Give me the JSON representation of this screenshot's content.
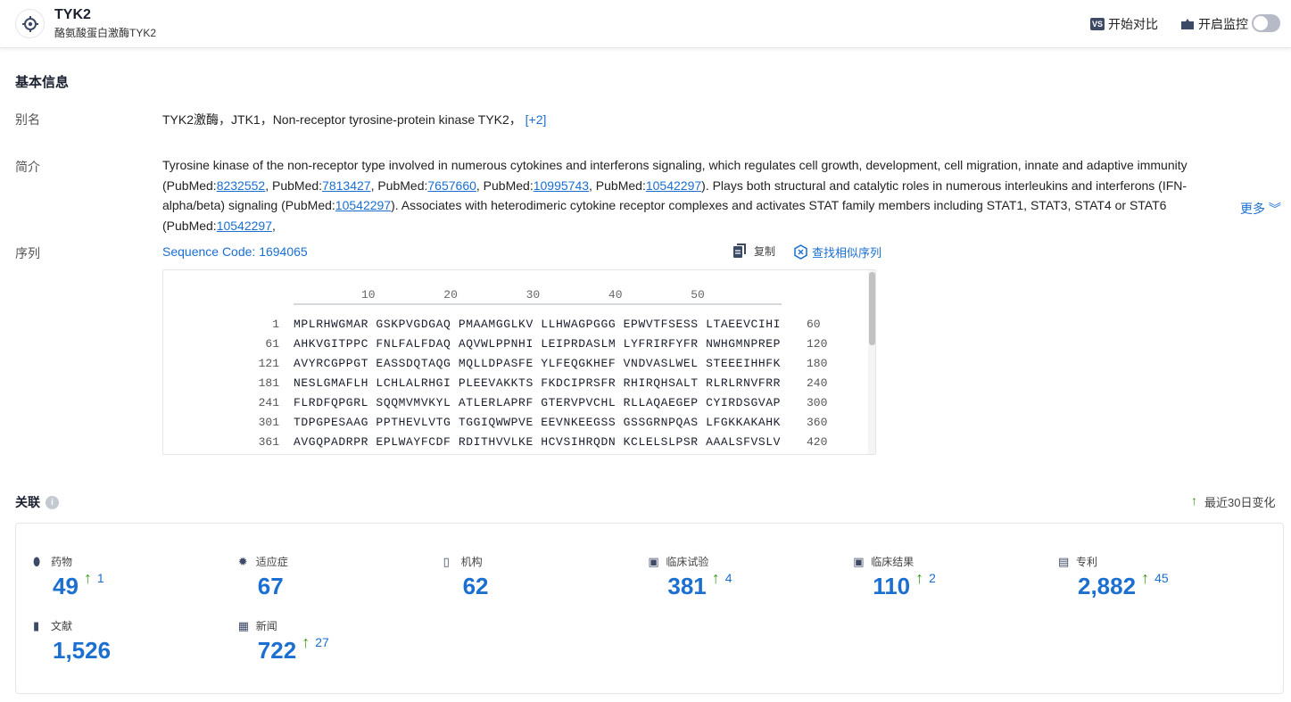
{
  "header": {
    "title": "TYK2",
    "subtitle": "酪氨酸蛋白激酶TYK2",
    "compare_label": "开始对比",
    "compare_icon": "VS",
    "monitor_label": "开启监控",
    "monitor_on": false
  },
  "basic": {
    "title": "基本信息",
    "alias_label": "别名",
    "alias_value": "TYK2激酶，JTK1，Non-receptor tyrosine-protein kinase TYK2，",
    "alias_more": "[+2]",
    "intro_label": "简介",
    "intro": [
      {
        "t": "Tyrosine kinase of the non-receptor type involved in numerous cytokines and interferons signaling, which regulates cell growth, development, cell migration, innate and adaptive immunity (PubMed:"
      },
      {
        "l": "8232552"
      },
      {
        "t": ", PubMed:"
      },
      {
        "l": "7813427"
      },
      {
        "t": ", PubMed:"
      },
      {
        "l": "7657660"
      },
      {
        "t": ", PubMed:"
      },
      {
        "l": "10995743"
      },
      {
        "t": ", PubMed:"
      },
      {
        "l": "10542297"
      },
      {
        "t": "). Plays both structural and catalytic roles in numerous interleukins and interferons (IFN-alpha/beta) signaling (PubMed:"
      },
      {
        "l": "10542297"
      },
      {
        "t": "). Associates with heterodimeric cytokine receptor complexes and activates STAT family members including STAT1, STAT3, STAT4 or STAT6 (PubMed:"
      },
      {
        "l": "10542297"
      },
      {
        "t": ","
      }
    ],
    "more_label": "更多",
    "seq_label": "序列",
    "seq_code": "Sequence Code: 1694065",
    "copy_label": "复制",
    "similar_label": "查找相似序列",
    "ruler": [
      "10",
      "20",
      "30",
      "40",
      "50"
    ],
    "rows": [
      {
        "start": "1",
        "seq": "MPLRHWGMAR GSKPVGDGAQ PMAAMGGLKV LLHWAGPGGG EPWVTFSESS LTAEEVCIHI",
        "end": "60"
      },
      {
        "start": "61",
        "seq": "AHKVGITPPC FNLFALFDAQ AQVWLPPNHI LEIPRDASLM LYFRIRFYFR NWHGMNPREP",
        "end": "120"
      },
      {
        "start": "121",
        "seq": "AVYRCGPPGT EASSDQTAQG MQLLDPASFE YLFEQGKHEF VNDVASLWEL STEEEIHHFK",
        "end": "180"
      },
      {
        "start": "181",
        "seq": "NESLGMAFLH LCHLALRHGI PLEEVAKKTS FKDCIPRSFR RHIRQHSALT RLRLRNVFRR",
        "end": "240"
      },
      {
        "start": "241",
        "seq": "FLRDFQPGRL SQQMVMVKYL ATLERLAPRF GTERVPVCHL RLLAQAEGEP CYIRDSGVAP",
        "end": "300"
      },
      {
        "start": "301",
        "seq": "TDPGPESAAG PPTHEVLVTG TGGIQWWPVE EEVNKEEGSS GSSGRNPQAS LFGKKAKAHK",
        "end": "360"
      },
      {
        "start": "361",
        "seq": "AVGQPADRPR EPLWAYFCDF RDITHVVLKE HCVSIHRQDN KCLELSLPSR AAALSFVSLV",
        "end": "420"
      }
    ]
  },
  "related": {
    "title": "关联",
    "change_label": "最近30日变化",
    "items": [
      {
        "label": "药物",
        "icon": "pill-icon",
        "value": "49",
        "delta": "1"
      },
      {
        "label": "适应症",
        "icon": "virus-icon",
        "value": "67",
        "delta": ""
      },
      {
        "label": "机构",
        "icon": "building-icon",
        "value": "62",
        "delta": ""
      },
      {
        "label": "临床试验",
        "icon": "clinical-trial-icon",
        "value": "381",
        "delta": "4"
      },
      {
        "label": "临床结果",
        "icon": "clinical-result-icon",
        "value": "110",
        "delta": "2"
      },
      {
        "label": "专利",
        "icon": "patent-icon",
        "value": "2,882",
        "delta": "45"
      },
      {
        "label": "文献",
        "icon": "document-icon",
        "value": "1,526",
        "delta": ""
      },
      {
        "label": "新闻",
        "icon": "news-icon",
        "value": "722",
        "delta": "27"
      }
    ]
  },
  "colors": {
    "accent": "#1a6fd0",
    "up": "#3a9a1a"
  }
}
